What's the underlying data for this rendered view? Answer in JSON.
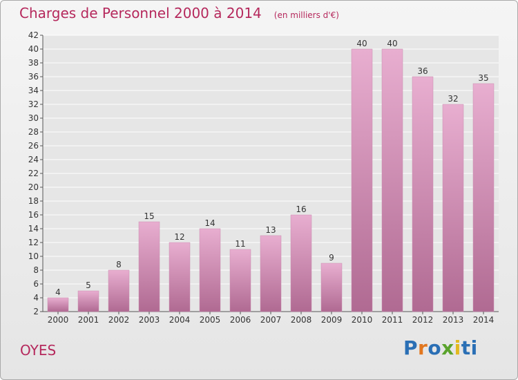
{
  "header": {
    "title": "Charges de Personnel 2000 à 2014",
    "subtitle": "(en milliers d'€)"
  },
  "footer": {
    "commune": "OYES",
    "logo_letters": [
      "P",
      "r",
      "o",
      "x",
      "i",
      "t",
      "i"
    ],
    "logo_colors": [
      "#2a6fb5",
      "#e2771f",
      "#2a6fb5",
      "#5aa32c",
      "#e2b91f",
      "#2a6fb5",
      "#2a6fb5"
    ]
  },
  "colors": {
    "bar_top": "#e8aed0",
    "bar_bottom": "#b06a92",
    "title": "#b5285c",
    "grid": "#ffffff"
  },
  "chart_data": {
    "type": "bar",
    "categories": [
      "2000",
      "2001",
      "2002",
      "2003",
      "2004",
      "2005",
      "2006",
      "2007",
      "2008",
      "2009",
      "2010",
      "2011",
      "2012",
      "2013",
      "2014"
    ],
    "values": [
      4,
      5,
      8,
      15,
      12,
      14,
      11,
      13,
      16,
      9,
      40,
      40,
      36,
      32,
      35
    ],
    "ylim": [
      2,
      42
    ],
    "ytick_step": 2,
    "grid": true,
    "xlabel": "",
    "ylabel": ""
  }
}
